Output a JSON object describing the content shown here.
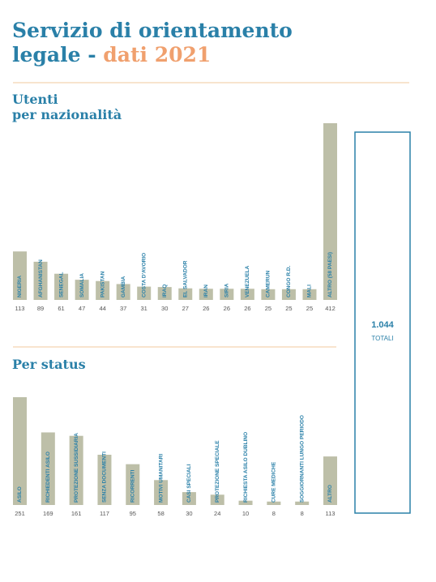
{
  "title": {
    "line1": "Servizio di orientamento",
    "line2a": "legale -",
    "line2b": "dati 2021"
  },
  "total": {
    "value": "1.044",
    "label": "TOTALI"
  },
  "chart_data": [
    {
      "type": "bar",
      "title": "Utenti",
      "subtitle": "per nazionalità",
      "color": "#bdbfa8",
      "categories": [
        "NIGERIA",
        "AFGHANISTAN",
        "SENEGAL",
        "SOMALIA",
        "PAKISTAN",
        "GAMBIA",
        "COSTA D'AVORIO",
        "IRAQ",
        "EL SALVADOR",
        "IRAN",
        "SIRIA",
        "VENEZUELA",
        "CAMERUN",
        "CONGO R.D.",
        "MALI",
        "ALTRO (58 PAESI)"
      ],
      "values": [
        113,
        89,
        61,
        47,
        44,
        37,
        31,
        30,
        27,
        26,
        26,
        26,
        25,
        25,
        25,
        412
      ]
    },
    {
      "type": "bar",
      "title": "Per status",
      "color": "#bdbfa8",
      "categories": [
        "ASILO",
        "RICHIEDENTI ASILO",
        "PROTEZIONE SUSSIDIARIA",
        "SENZA DOCUMENTI",
        "RICORRENTI",
        "MOTIVI UMANITARI",
        "CASI SPECIALI",
        "PROTEZIONE SPECIALE",
        "RICHIESTA ASILO DUBLINO",
        "CURE MEDICHE",
        "SOGGIORNANTI LUNGO PERIODO",
        "ALTRO"
      ],
      "values": [
        251,
        169,
        161,
        117,
        95,
        58,
        30,
        24,
        10,
        8,
        8,
        113
      ]
    }
  ]
}
